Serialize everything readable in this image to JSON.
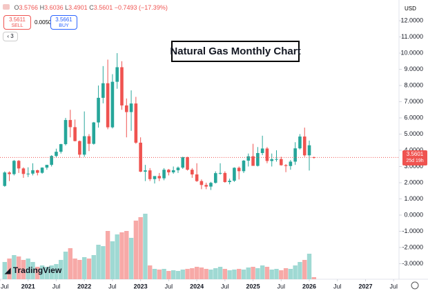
{
  "header": {
    "ohlc_labels": [
      "O",
      "H",
      "L",
      "C"
    ],
    "change": "−0.7493",
    "change_pct": "(−17.39%)",
    "sell_price": 3.5611,
    "sell_label": "SELL",
    "spread": "0.0050",
    "buy_price": 3.5661,
    "buy_label": "BUY",
    "indicator_count": 3,
    "currency": "USD",
    "countdown": "25d 19h",
    "logo": "TradingView"
  },
  "chart_data": {
    "type": "candlestick",
    "title": "Natural Gas Monthly Chart",
    "x": [
      "2020-08",
      "2020-09",
      "2020-10",
      "2020-11",
      "2020-12",
      "2021-01",
      "2021-02",
      "2021-03",
      "2021-04",
      "2021-05",
      "2021-06",
      "2021-07",
      "2021-08",
      "2021-09",
      "2021-10",
      "2021-11",
      "2021-12",
      "2022-01",
      "2022-02",
      "2022-03",
      "2022-04",
      "2022-05",
      "2022-06",
      "2022-07",
      "2022-08",
      "2022-09",
      "2022-10",
      "2022-11",
      "2022-12",
      "2023-01",
      "2023-02",
      "2023-03",
      "2023-04",
      "2023-05",
      "2023-06",
      "2023-07",
      "2023-08",
      "2023-09",
      "2023-10",
      "2023-11",
      "2023-12",
      "2024-01",
      "2024-02",
      "2024-03",
      "2024-04",
      "2024-05",
      "2024-06",
      "2024-07",
      "2024-08",
      "2024-09",
      "2024-10",
      "2024-11",
      "2024-12",
      "2025-01",
      "2025-02",
      "2025-03",
      "2025-04",
      "2025-05",
      "2025-06",
      "2025-07",
      "2025-08",
      "2025-09",
      "2025-10",
      "2025-11",
      "2025-12",
      "2026-01",
      "2026-02"
    ],
    "open": [
      1.8,
      2.63,
      2.53,
      3.35,
      2.88,
      2.54,
      2.56,
      2.77,
      2.61,
      2.93,
      3.1,
      3.65,
      3.91,
      4.38,
      5.87,
      5.43,
      4.57,
      3.73,
      4.87,
      4.4,
      5.72,
      7.24,
      8.14,
      5.42,
      8.23,
      9.13,
      6.77,
      6.36,
      6.89,
      4.47,
      2.68,
      2.76,
      2.22,
      2.41,
      2.27,
      2.8,
      2.64,
      2.77,
      2.93,
      3.58,
      2.8,
      2.51,
      2.1,
      1.86,
      1.76,
      1.99,
      2.59,
      2.6,
      2.04,
      2.12,
      2.92,
      2.71,
      3.36,
      3.63,
      3.04,
      3.83,
      4.11,
      3.34,
      3.45,
      3.46,
      3.08,
      3.03,
      3.3,
      4.12,
      4.85,
      3.69,
      3.5766
    ],
    "high": [
      2.7,
      2.7,
      3.4,
      3.4,
      2.95,
      2.95,
      3.2,
      2.8,
      2.95,
      3.1,
      3.7,
      4.1,
      4.4,
      6.0,
      6.5,
      5.9,
      4.6,
      6.4,
      5.0,
      5.75,
      8.0,
      9.2,
      9.6,
      8.7,
      10.0,
      9.5,
      7.2,
      7.7,
      7.3,
      4.8,
      3.1,
      2.9,
      2.4,
      2.6,
      2.9,
      2.85,
      3.0,
      3.0,
      3.6,
      3.6,
      2.9,
      3.2,
      2.2,
      2.0,
      2.05,
      2.7,
      3.2,
      2.7,
      2.25,
      2.95,
      3.0,
      3.4,
      3.8,
      4.4,
      4.2,
      4.9,
      4.2,
      3.8,
      4.0,
      3.6,
      3.15,
      3.4,
      4.5,
      5.0,
      5.4,
      4.6,
      3.6036
    ],
    "low": [
      1.75,
      2.1,
      2.45,
      2.6,
      2.3,
      2.35,
      2.45,
      2.45,
      2.55,
      2.8,
      3.0,
      3.55,
      3.8,
      4.3,
      4.8,
      4.55,
      3.55,
      3.6,
      3.95,
      4.35,
      5.4,
      6.9,
      5.3,
      5.35,
      7.8,
      6.5,
      4.8,
      5.2,
      4.4,
      2.65,
      2.1,
      2.1,
      1.95,
      2.1,
      2.15,
      2.45,
      2.55,
      2.6,
      2.85,
      2.75,
      2.3,
      2.05,
      1.6,
      1.6,
      1.55,
      1.95,
      2.5,
      2.0,
      1.9,
      2.05,
      2.2,
      2.6,
      3.0,
      3.1,
      3.0,
      3.7,
      3.2,
      3.0,
      3.3,
      3.05,
      2.65,
      2.8,
      3.1,
      4.05,
      3.6,
      2.75,
      3.4901
    ],
    "close": [
      2.63,
      2.53,
      3.35,
      2.88,
      2.54,
      2.56,
      2.77,
      2.61,
      2.93,
      3.1,
      3.65,
      3.91,
      4.38,
      5.87,
      5.43,
      4.57,
      3.73,
      4.87,
      4.4,
      5.72,
      7.24,
      8.14,
      5.42,
      8.23,
      9.13,
      6.77,
      6.36,
      6.89,
      4.47,
      2.68,
      2.76,
      2.22,
      2.41,
      2.27,
      2.8,
      2.64,
      2.77,
      2.93,
      3.58,
      2.8,
      2.51,
      2.1,
      1.86,
      1.76,
      1.99,
      2.59,
      2.6,
      2.04,
      2.12,
      2.92,
      2.71,
      3.36,
      3.63,
      3.04,
      3.83,
      4.11,
      3.34,
      3.45,
      3.46,
      3.08,
      3.03,
      3.3,
      4.12,
      4.85,
      3.69,
      4.3094,
      3.5601
    ],
    "volume": [
      25,
      30,
      35,
      33,
      28,
      30,
      25,
      18,
      20,
      18,
      20,
      22,
      28,
      40,
      45,
      30,
      28,
      32,
      30,
      35,
      50,
      48,
      70,
      55,
      65,
      68,
      70,
      60,
      85,
      90,
      95,
      20,
      15,
      14,
      15,
      12,
      13,
      12,
      14,
      15,
      16,
      18,
      17,
      15,
      14,
      16,
      18,
      15,
      13,
      14,
      15,
      14,
      17,
      18,
      16,
      20,
      18,
      14,
      15,
      13,
      16,
      15,
      20,
      25,
      28,
      37,
      3
    ],
    "up_color": "#26a69a",
    "down_color": "#ef5350",
    "volume_up_color": "#9fd9d3",
    "volume_down_color": "#f7a9a7",
    "xlim": [
      "2020-07",
      "2027-08"
    ],
    "xticks": [
      {
        "value": "2020-07",
        "label": "Jul"
      },
      {
        "value": "2021-01",
        "label": "2021"
      },
      {
        "value": "2021-07",
        "label": "Jul"
      },
      {
        "value": "2022-01",
        "label": "2022"
      },
      {
        "value": "2022-07",
        "label": "Jul"
      },
      {
        "value": "2023-01",
        "label": "2023"
      },
      {
        "value": "2023-07",
        "label": "Jul"
      },
      {
        "value": "2024-01",
        "label": "2024"
      },
      {
        "value": "2024-07",
        "label": "Jul"
      },
      {
        "value": "2025-01",
        "label": "2025"
      },
      {
        "value": "2025-07",
        "label": "Jul"
      },
      {
        "value": "2026-01",
        "label": "2026"
      },
      {
        "value": "2026-07",
        "label": "Jul"
      },
      {
        "value": "2027-01",
        "label": "2027"
      },
      {
        "value": "2027-07",
        "label": "Jul"
      }
    ],
    "ylim": [
      -3.96,
      13.28
    ],
    "yticks": [
      {
        "value": -3,
        "label": "-3.0000"
      },
      {
        "value": -2,
        "label": "-2.0000"
      },
      {
        "value": -1,
        "label": "-1.0000"
      },
      {
        "value": 0,
        "label": "0.0000"
      },
      {
        "value": 1,
        "label": "1.0000"
      },
      {
        "value": 2,
        "label": "2.0000"
      },
      {
        "value": 3,
        "label": "3.0000"
      },
      {
        "value": 4,
        "label": "4.0000"
      },
      {
        "value": 5,
        "label": "5.0000"
      },
      {
        "value": 6,
        "label": "6.0000"
      },
      {
        "value": 7,
        "label": "7.0000"
      },
      {
        "value": 8,
        "label": "8.0000"
      },
      {
        "value": 9,
        "label": "9.0000"
      },
      {
        "value": 10,
        "label": "10.0000"
      },
      {
        "value": 11,
        "label": "11.0000"
      },
      {
        "value": 12,
        "label": "12.0000"
      }
    ]
  }
}
